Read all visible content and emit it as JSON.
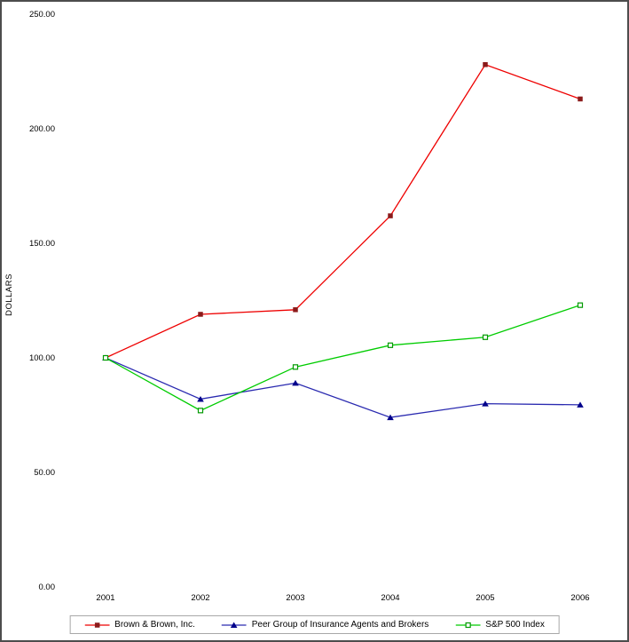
{
  "chart_data": {
    "type": "line",
    "title": "",
    "xlabel": "",
    "ylabel": "DOLLARS",
    "categories": [
      "2001",
      "2002",
      "2003",
      "2004",
      "2005",
      "2006"
    ],
    "y_ticks": [
      0,
      50,
      100,
      150,
      200,
      250
    ],
    "y_tick_labels": [
      "0.00",
      "50.00",
      "100.00",
      "150.00",
      "200.00",
      "250.00"
    ],
    "ylim": [
      0,
      250
    ],
    "grid": false,
    "legend_position": "bottom",
    "series": [
      {
        "name": "Brown & Brown, Inc.",
        "values": [
          100,
          119,
          121,
          162,
          228,
          213
        ],
        "color": "#ee0000",
        "marker": "square-filled",
        "marker_color": "#8b1a1a"
      },
      {
        "name": "Peer Group of Insurance Agents and Brokers",
        "values": [
          100,
          82,
          89,
          74,
          80,
          79.5
        ],
        "color": "#2a2ab0",
        "marker": "triangle-filled",
        "marker_color": "#00008b"
      },
      {
        "name": "S&P 500 Index",
        "values": [
          100,
          77,
          96,
          105.5,
          109,
          123
        ],
        "color": "#00cc00",
        "marker": "square-open",
        "marker_color": "#009900"
      }
    ]
  }
}
